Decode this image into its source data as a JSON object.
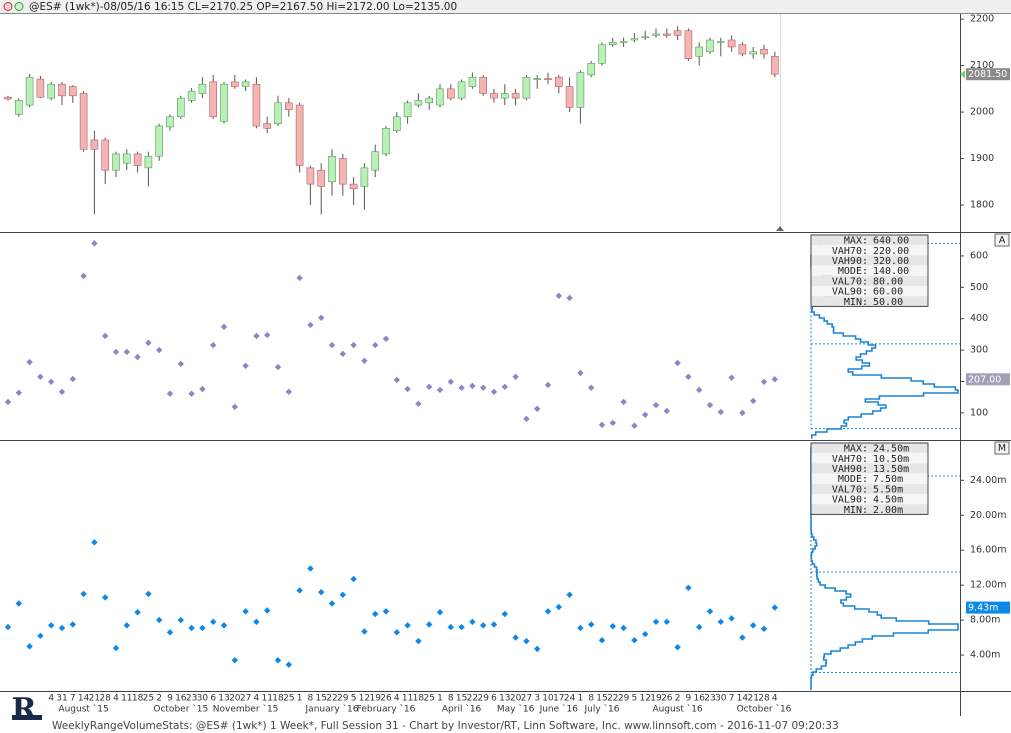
{
  "header": {
    "text": "@ES# (1wk*)-08/05/16 16:15 CL=2170.25 OP=2167.50 Hi=2172.00 Lo=2135.00"
  },
  "footer": {
    "text": "WeeklyRangeVolumeStats: @ES# (1wk*) 1 Week*, Full Session 31 - Chart by Investor/RT, Linn Software, Inc. www.linnsoft.com - 2016-11-07 09:20:33"
  },
  "logo": {
    "text": "R"
  },
  "chart_data": [
    {
      "type": "candlestick",
      "categories": [
        null,
        null,
        null,
        null,
        "4",
        "31",
        "7",
        "14",
        "21",
        "28",
        "4",
        "11",
        "18",
        "25",
        "2",
        "9",
        "16",
        "23",
        "30",
        "6",
        "13",
        "20",
        "27",
        "4",
        "11",
        "18",
        "25",
        "1",
        "8",
        "15",
        "22",
        "29",
        "5",
        "12",
        "19",
        "26",
        "4",
        "11",
        "18",
        "25",
        "1",
        "8",
        "15",
        "22",
        "29",
        "6",
        "13",
        "20",
        "27",
        "3",
        "10",
        "17",
        "24",
        "1",
        "8",
        "15",
        "22",
        "29",
        "5",
        "12",
        "19",
        "26",
        "2",
        "9",
        "16",
        "23",
        "30",
        "7",
        "14",
        "21",
        "28",
        "4"
      ],
      "month_labels": [
        null,
        null,
        null,
        null,
        null,
        null,
        null,
        "August `15",
        null,
        null,
        null,
        null,
        null,
        null,
        null,
        null,
        "October `15",
        null,
        null,
        null,
        null,
        null,
        "November `15",
        null,
        null,
        null,
        null,
        null,
        null,
        null,
        "January `16",
        null,
        null,
        null,
        null,
        "February `16",
        null,
        null,
        null,
        null,
        null,
        null,
        "April `16",
        null,
        null,
        null,
        null,
        "May `16",
        null,
        null,
        null,
        "June `16",
        null,
        null,
        null,
        "July `16",
        null,
        null,
        null,
        null,
        null,
        null,
        "August `16",
        null,
        null,
        null,
        null,
        null,
        null,
        null,
        "October `16",
        null
      ],
      "open": [
        2032,
        1995,
        2015,
        2071,
        2030,
        2060,
        2055,
        2040,
        1940,
        1940,
        1875,
        1890,
        1910,
        1880,
        1905,
        1968,
        1990,
        2025,
        2040,
        2065,
        1980,
        2065,
        2055,
        2060,
        1975,
        1975,
        2020,
        2015,
        1880,
        1875,
        1850,
        1900,
        1845,
        1840,
        1875,
        1910,
        1960,
        1990,
        2015,
        2020,
        2015,
        2050,
        2030,
        2055,
        2075,
        2040,
        2030,
        2040,
        2030,
        2070,
        2072,
        2075,
        2055,
        2010,
        2080,
        2105,
        2145,
        2150,
        2155,
        2160,
        2165,
        2168,
        2175,
        2175,
        2120,
        2130,
        2150,
        2155,
        2145,
        2125,
        2135,
        2120
      ],
      "high": [
        2035,
        2030,
        2082,
        2078,
        2065,
        2065,
        2058,
        2045,
        1960,
        1945,
        1915,
        1920,
        1915,
        1915,
        1975,
        1995,
        2035,
        2052,
        2075,
        2080,
        2065,
        2080,
        2070,
        2075,
        1990,
        2035,
        2030,
        2020,
        1885,
        1890,
        1920,
        1910,
        1860,
        1890,
        1930,
        1970,
        2000,
        2025,
        2040,
        2035,
        2060,
        2060,
        2070,
        2085,
        2080,
        2050,
        2060,
        2050,
        2080,
        2080,
        2085,
        2080,
        2075,
        2090,
        2110,
        2150,
        2160,
        2160,
        2170,
        2175,
        2180,
        2180,
        2185,
        2180,
        2150,
        2160,
        2160,
        2165,
        2150,
        2140,
        2145,
        2130
      ],
      "low": [
        2025,
        1990,
        2010,
        2030,
        2025,
        2015,
        2020,
        1915,
        1780,
        1845,
        1860,
        1875,
        1870,
        1840,
        1895,
        1960,
        1985,
        2020,
        2030,
        1985,
        1975,
        2050,
        2045,
        1965,
        1955,
        1970,
        1990,
        1870,
        1800,
        1780,
        1820,
        1820,
        1800,
        1790,
        1860,
        1905,
        1955,
        1975,
        2010,
        2005,
        2010,
        2025,
        2025,
        2050,
        2035,
        2020,
        2015,
        2015,
        2025,
        2050,
        2060,
        2040,
        2000,
        1975,
        2075,
        2100,
        2140,
        2140,
        2150,
        2155,
        2160,
        2160,
        2155,
        2110,
        2100,
        2125,
        2120,
        2130,
        2120,
        2115,
        2115,
        2075
      ],
      "close": [
        2028,
        2025,
        2075,
        2032,
        2060,
        2035,
        2035,
        1920,
        1920,
        1875,
        1910,
        1910,
        1885,
        1905,
        1970,
        1990,
        2030,
        2045,
        2060,
        1990,
        2060,
        2055,
        2065,
        1970,
        1965,
        2020,
        2005,
        1885,
        1845,
        1840,
        1905,
        1845,
        1835,
        1880,
        1915,
        1965,
        1990,
        2020,
        2025,
        2030,
        2050,
        2030,
        2065,
        2075,
        2040,
        2030,
        2040,
        2030,
        2075,
        2072,
        2070,
        2055,
        2010,
        2085,
        2105,
        2145,
        2150,
        2152,
        2158,
        2162,
        2168,
        2165,
        2165,
        2115,
        2140,
        2155,
        2152,
        2140,
        2125,
        2130,
        2125,
        2081.5
      ],
      "value_labels": [
        null,
        null,
        null,
        null,
        null,
        null,
        null,
        null,
        null,
        null,
        null,
        null,
        null,
        null,
        null,
        null,
        null,
        null,
        null,
        null,
        null,
        null,
        null,
        null,
        null,
        null,
        null,
        null,
        null,
        null,
        null,
        null,
        null,
        null,
        null,
        null,
        null,
        null,
        null,
        null,
        null,
        null,
        null,
        null,
        null,
        null,
        null,
        null,
        null,
        null,
        null,
        null,
        null,
        null,
        null,
        null,
        null,
        null,
        null,
        null,
        null,
        null,
        null,
        null,
        null,
        null,
        null,
        null,
        null,
        null,
        null,
        "2081.50"
      ],
      "up_color": "#b8f0b8",
      "down_color": "#f4b4b4",
      "ylim": [
        1742,
        2211
      ],
      "yticks": [
        1800,
        1900,
        2000,
        2100,
        2200
      ]
    },
    {
      "type": "scatter",
      "pane_label": "A",
      "color": "#8c86c4",
      "values": [
        135,
        164,
        262,
        215,
        199,
        167,
        208,
        536,
        640,
        345,
        294,
        294,
        278,
        323,
        300,
        161,
        256,
        161,
        176,
        316,
        374,
        119,
        250,
        345,
        348,
        246,
        167,
        530,
        380,
        403,
        316,
        288,
        316,
        266,
        316,
        336,
        205,
        176,
        129,
        183,
        173,
        199,
        180,
        186,
        180,
        167,
        183,
        215,
        81,
        113,
        189,
        473,
        466,
        227,
        180,
        62,
        68,
        135,
        59,
        94,
        125,
        106,
        259,
        215,
        173,
        125,
        103,
        212,
        100,
        138,
        199,
        207
      ],
      "value_labels": [
        null,
        null,
        null,
        null,
        null,
        null,
        null,
        null,
        null,
        null,
        null,
        null,
        null,
        null,
        null,
        null,
        null,
        null,
        null,
        null,
        null,
        null,
        null,
        null,
        null,
        null,
        null,
        null,
        null,
        null,
        null,
        null,
        null,
        null,
        null,
        null,
        null,
        null,
        null,
        null,
        null,
        null,
        null,
        null,
        null,
        null,
        null,
        null,
        null,
        null,
        null,
        null,
        null,
        null,
        null,
        null,
        null,
        null,
        null,
        null,
        null,
        null,
        null,
        null,
        null,
        null,
        null,
        null,
        null,
        null,
        null,
        "207.00"
      ],
      "stats": [
        {
          "name": "MAX:",
          "value": 640,
          "label": "640.00"
        },
        {
          "name": "VAH70:",
          "value": 220,
          "label": "220.00"
        },
        {
          "name": "VAH90:",
          "value": 320,
          "label": "320.00"
        },
        {
          "name": "MODE:",
          "value": 140,
          "label": "140.00"
        },
        {
          "name": "VAL70:",
          "value": 80,
          "label": "80.00"
        },
        {
          "name": "VAL90:",
          "value": 60,
          "label": "60.00"
        },
        {
          "name": "MIN:",
          "value": 50,
          "label": "50.00"
        }
      ],
      "profile_color": "#1a84d8",
      "ylim": [
        20,
        673
      ],
      "yticks": [
        100,
        200,
        300,
        400,
        500,
        600
      ]
    },
    {
      "type": "scatter",
      "pane_label": "M",
      "color": "#0c88e8",
      "values": [
        7.2,
        9.9,
        5.0,
        6.2,
        7.4,
        7.1,
        7.5,
        11.0,
        16.9,
        10.6,
        4.8,
        7.4,
        8.9,
        11.0,
        8.0,
        6.6,
        8.0,
        7.1,
        7.1,
        7.8,
        7.4,
        3.4,
        9.0,
        7.8,
        9.1,
        3.4,
        2.9,
        11.4,
        13.9,
        11.2,
        9.9,
        10.9,
        12.7,
        6.7,
        8.7,
        9.0,
        6.6,
        7.4,
        5.6,
        7.5,
        8.9,
        7.2,
        7.2,
        7.8,
        7.4,
        7.5,
        8.7,
        6.0,
        5.6,
        4.7,
        9.0,
        9.5,
        10.9,
        7.1,
        7.5,
        5.7,
        7.3,
        7.1,
        5.7,
        6.4,
        7.8,
        7.8,
        4.9,
        11.7,
        7.2,
        9.0,
        7.8,
        8.2,
        6.0,
        7.4,
        7.0,
        9.43
      ],
      "value_labels": [
        null,
        null,
        null,
        null,
        null,
        null,
        null,
        null,
        null,
        null,
        null,
        null,
        null,
        null,
        null,
        null,
        null,
        null,
        null,
        null,
        null,
        null,
        null,
        null,
        null,
        null,
        null,
        null,
        null,
        null,
        null,
        null,
        null,
        null,
        null,
        null,
        null,
        null,
        null,
        null,
        null,
        null,
        null,
        null,
        null,
        null,
        null,
        null,
        null,
        null,
        null,
        null,
        null,
        null,
        null,
        null,
        null,
        null,
        null,
        null,
        null,
        null,
        null,
        null,
        null,
        null,
        null,
        null,
        null,
        null,
        null,
        "9.43m"
      ],
      "stats": [
        {
          "name": "MAX:",
          "value": 24.5,
          "label": "24.50m"
        },
        {
          "name": "VAH70:",
          "value": 10.5,
          "label": "10.50m"
        },
        {
          "name": "VAH90:",
          "value": 13.5,
          "label": "13.50m"
        },
        {
          "name": "MODE:",
          "value": 7.5,
          "label": "7.50m"
        },
        {
          "name": "VAL70:",
          "value": 5.5,
          "label": "5.50m"
        },
        {
          "name": "VAL90:",
          "value": 4.5,
          "label": "4.50m"
        },
        {
          "name": "MIN:",
          "value": 2,
          "label": "2.00m"
        }
      ],
      "profile_color": "#1a84d8",
      "ylim": [
        0,
        28.5
      ],
      "yticks": [
        {
          "value": 4,
          "label": "4.00m"
        },
        {
          "value": 8,
          "label": "8.00m"
        },
        {
          "value": 12,
          "label": "12.00m"
        },
        {
          "value": 16,
          "label": "16.00m"
        },
        {
          "value": 20,
          "label": "20.00m"
        },
        {
          "value": 24,
          "label": "24.00m"
        }
      ]
    }
  ]
}
